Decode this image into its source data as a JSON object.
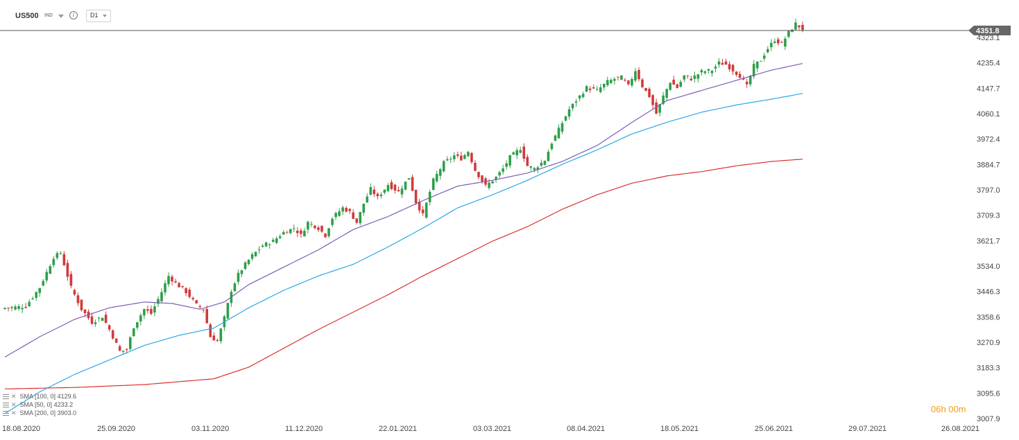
{
  "toolbar": {
    "symbol": "US500",
    "instrument_type": "IND",
    "info_icon": "info-icon",
    "timeframe": "D1"
  },
  "current_price": "4351.8",
  "countdown": "06h 00m",
  "colors": {
    "up": "#2e9f4a",
    "down": "#d13a3a",
    "sma50": "#7f5bb5",
    "sma100": "#2aa7e8",
    "sma200": "#d9302c",
    "price_line": "#555555",
    "price_tag": "#666666"
  },
  "legend": [
    {
      "label": "SMA [100, 0]",
      "value": "4129.6",
      "color": "#2aa7e8"
    },
    {
      "label": "SMA [50, 0]",
      "value": "4233.2",
      "color": "#7f5bb5"
    },
    {
      "label": "SMA [200, 0]",
      "value": "3903.0",
      "color": "#d9302c"
    }
  ],
  "chart_data": {
    "type": "candlestick",
    "x_axis_labels": [
      "18.08.2020",
      "25.09.2020",
      "03.11.2020",
      "11.12.2020",
      "22.01.2021",
      "03.03.2021",
      "08.04.2021",
      "18.05.2021",
      "25.06.2021",
      "29.07.2021",
      "26.08.2021"
    ],
    "y_axis_labels": [
      "4323.1",
      "4235.4",
      "4147.7",
      "4060.1",
      "3972.4",
      "3884.7",
      "3797.0",
      "3709.3",
      "3621.7",
      "3534.0",
      "3446.3",
      "3358.6",
      "3270.9",
      "3183.3",
      "3095.6",
      "3007.9"
    ],
    "ylim": [
      3007.9,
      4323.1
    ],
    "close_anchors": [
      [
        0,
        3390
      ],
      [
        6,
        3395
      ],
      [
        10,
        3460
      ],
      [
        14,
        3565
      ],
      [
        16,
        3580
      ],
      [
        19,
        3460
      ],
      [
        22,
        3385
      ],
      [
        25,
        3340
      ],
      [
        28,
        3360
      ],
      [
        30,
        3315
      ],
      [
        33,
        3240
      ],
      [
        35,
        3245
      ],
      [
        37,
        3325
      ],
      [
        40,
        3385
      ],
      [
        42,
        3370
      ],
      [
        45,
        3445
      ],
      [
        47,
        3500
      ],
      [
        49,
        3475
      ],
      [
        52,
        3445
      ],
      [
        55,
        3400
      ],
      [
        57,
        3385
      ],
      [
        59,
        3290
      ],
      [
        61,
        3275
      ],
      [
        63,
        3355
      ],
      [
        65,
        3450
      ],
      [
        67,
        3505
      ],
      [
        69,
        3540
      ],
      [
        71,
        3570
      ],
      [
        74,
        3605
      ],
      [
        77,
        3620
      ],
      [
        80,
        3650
      ],
      [
        83,
        3665
      ],
      [
        85,
        3640
      ],
      [
        87,
        3685
      ],
      [
        90,
        3665
      ],
      [
        92,
        3640
      ],
      [
        94,
        3700
      ],
      [
        97,
        3735
      ],
      [
        99,
        3720
      ],
      [
        101,
        3685
      ],
      [
        103,
        3750
      ],
      [
        105,
        3800
      ],
      [
        107,
        3770
      ],
      [
        110,
        3815
      ],
      [
        113,
        3790
      ],
      [
        116,
        3840
      ],
      [
        118,
        3755
      ],
      [
        120,
        3710
      ],
      [
        123,
        3830
      ],
      [
        126,
        3890
      ],
      [
        129,
        3915
      ],
      [
        131,
        3905
      ],
      [
        133,
        3930
      ],
      [
        135,
        3865
      ],
      [
        138,
        3810
      ],
      [
        141,
        3840
      ],
      [
        143,
        3870
      ],
      [
        145,
        3910
      ],
      [
        148,
        3940
      ],
      [
        150,
        3880
      ],
      [
        152,
        3870
      ],
      [
        155,
        3900
      ],
      [
        157,
        3960
      ],
      [
        159,
        4005
      ],
      [
        162,
        4075
      ],
      [
        165,
        4120
      ],
      [
        167,
        4150
      ],
      [
        170,
        4140
      ],
      [
        173,
        4170
      ],
      [
        175,
        4180
      ],
      [
        177,
        4185
      ],
      [
        179,
        4155
      ],
      [
        181,
        4210
      ],
      [
        183,
        4155
      ],
      [
        185,
        4120
      ],
      [
        187,
        4060
      ],
      [
        189,
        4120
      ],
      [
        191,
        4170
      ],
      [
        193,
        4150
      ],
      [
        195,
        4190
      ],
      [
        197,
        4180
      ],
      [
        200,
        4205
      ],
      [
        203,
        4210
      ],
      [
        205,
        4235
      ],
      [
        207,
        4230
      ],
      [
        209,
        4210
      ],
      [
        211,
        4190
      ],
      [
        213,
        4155
      ],
      [
        215,
        4225
      ],
      [
        217,
        4245
      ],
      [
        219,
        4285
      ],
      [
        221,
        4315
      ],
      [
        223,
        4300
      ],
      [
        225,
        4340
      ],
      [
        227,
        4370
      ],
      [
        229,
        4352
      ]
    ],
    "sma50_anchors": [
      [
        0,
        3220
      ],
      [
        10,
        3290
      ],
      [
        20,
        3350
      ],
      [
        30,
        3390
      ],
      [
        40,
        3410
      ],
      [
        48,
        3405
      ],
      [
        56,
        3385
      ],
      [
        63,
        3410
      ],
      [
        70,
        3470
      ],
      [
        80,
        3530
      ],
      [
        90,
        3590
      ],
      [
        100,
        3660
      ],
      [
        110,
        3705
      ],
      [
        120,
        3760
      ],
      [
        130,
        3810
      ],
      [
        140,
        3830
      ],
      [
        150,
        3855
      ],
      [
        160,
        3895
      ],
      [
        170,
        3950
      ],
      [
        180,
        4030
      ],
      [
        190,
        4105
      ],
      [
        200,
        4140
      ],
      [
        210,
        4175
      ],
      [
        220,
        4210
      ],
      [
        229,
        4233.2
      ]
    ],
    "sma100_anchors": [
      [
        0,
        3025
      ],
      [
        10,
        3100
      ],
      [
        20,
        3160
      ],
      [
        30,
        3210
      ],
      [
        40,
        3260
      ],
      [
        50,
        3295
      ],
      [
        60,
        3320
      ],
      [
        70,
        3390
      ],
      [
        80,
        3450
      ],
      [
        90,
        3500
      ],
      [
        100,
        3540
      ],
      [
        110,
        3600
      ],
      [
        120,
        3665
      ],
      [
        130,
        3735
      ],
      [
        140,
        3780
      ],
      [
        150,
        3830
      ],
      [
        160,
        3885
      ],
      [
        170,
        3935
      ],
      [
        180,
        3990
      ],
      [
        190,
        4030
      ],
      [
        200,
        4065
      ],
      [
        210,
        4090
      ],
      [
        220,
        4110
      ],
      [
        229,
        4129.6
      ]
    ],
    "sma200_anchors": [
      [
        0,
        3110
      ],
      [
        20,
        3115
      ],
      [
        40,
        3125
      ],
      [
        60,
        3145
      ],
      [
        70,
        3185
      ],
      [
        80,
        3250
      ],
      [
        90,
        3315
      ],
      [
        100,
        3375
      ],
      [
        110,
        3435
      ],
      [
        120,
        3500
      ],
      [
        130,
        3560
      ],
      [
        140,
        3620
      ],
      [
        150,
        3670
      ],
      [
        160,
        3730
      ],
      [
        170,
        3780
      ],
      [
        180,
        3820
      ],
      [
        190,
        3845
      ],
      [
        200,
        3860
      ],
      [
        210,
        3880
      ],
      [
        220,
        3895
      ],
      [
        229,
        3903.0
      ]
    ],
    "bars": 230,
    "grid": false
  }
}
